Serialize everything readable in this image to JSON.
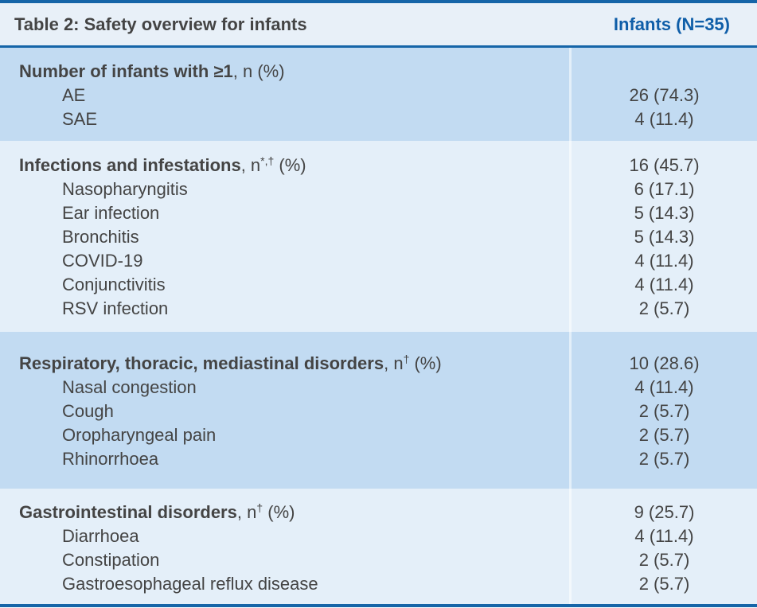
{
  "header": {
    "title": "Table 2: Safety overview for infants",
    "column": "Infants (N=35)"
  },
  "sections": [
    {
      "title": "Number of infants with ≥1",
      "suffix_pre": ", n",
      "sup": "",
      "suffix_post": " (%)",
      "value": "",
      "rows": [
        {
          "label": "AE",
          "value": "26 (74.3)"
        },
        {
          "label": "SAE",
          "value": "4 (11.4)"
        }
      ]
    },
    {
      "title": "Infections and infestations",
      "suffix_pre": ", n",
      "sup": "*,†",
      "suffix_post": " (%)",
      "value": "16 (45.7)",
      "rows": [
        {
          "label": "Nasopharyngitis",
          "value": "6 (17.1)"
        },
        {
          "label": "Ear infection",
          "value": "5 (14.3)"
        },
        {
          "label": "Bronchitis",
          "value": "5 (14.3)"
        },
        {
          "label": "COVID-19",
          "value": "4 (11.4)"
        },
        {
          "label": "Conjunctivitis",
          "value": "4 (11.4)"
        },
        {
          "label": "RSV infection",
          "value": "2 (5.7)"
        }
      ]
    },
    {
      "title": "Respiratory, thoracic, mediastinal disorders",
      "suffix_pre": ", n",
      "sup": "†",
      "suffix_post": " (%)",
      "value": "10 (28.6)",
      "rows": [
        {
          "label": "Nasal congestion",
          "value": "4 (11.4)"
        },
        {
          "label": "Cough",
          "value": "2 (5.7)"
        },
        {
          "label": "Oropharyngeal pain",
          "value": "2 (5.7)"
        },
        {
          "label": "Rhinorrhoea",
          "value": "2 (5.7)"
        }
      ]
    },
    {
      "title": "Gastrointestinal disorders",
      "suffix_pre": ", n",
      "sup": "†",
      "suffix_post": " (%)",
      "value": "9 (25.7)",
      "rows": [
        {
          "label": "Diarrhoea",
          "value": "4 (11.4)"
        },
        {
          "label": "Constipation",
          "value": "2 (5.7)"
        },
        {
          "label": "Gastroesophageal reflux disease",
          "value": "2 (5.7)"
        }
      ]
    }
  ]
}
